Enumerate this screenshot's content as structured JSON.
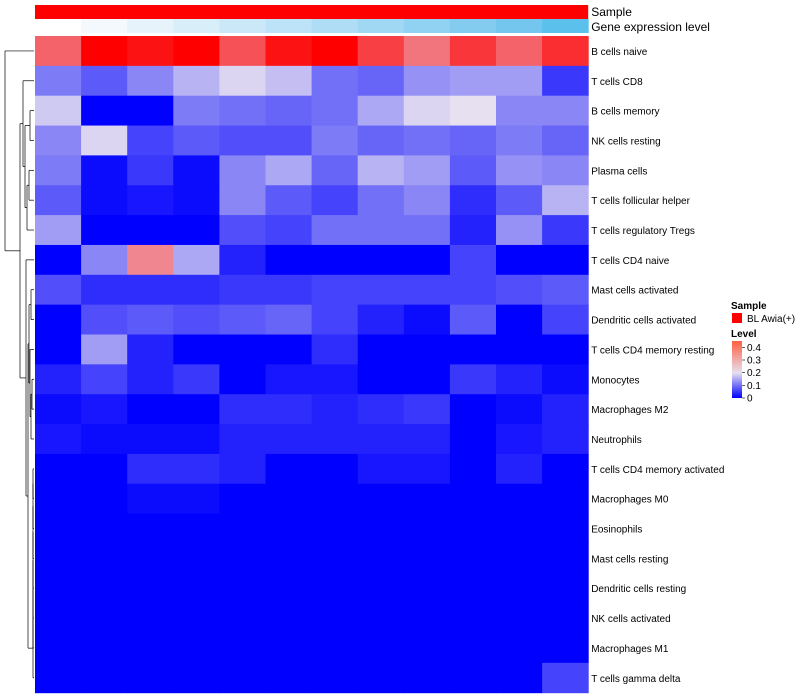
{
  "chart_data": {
    "type": "heatmap",
    "annotation_tracks": [
      {
        "name": "Sample",
        "color": "#ff0000"
      },
      {
        "name": "Gene expression level",
        "colors": [
          "#ffffff",
          "#f4f9fd",
          "#e6f3fb",
          "#d8eef9",
          "#cae8f8",
          "#bce3f7",
          "#aeddf5",
          "#a0d7f3",
          "#91d1f1",
          "#83cbef",
          "#75c6ee",
          "#5bc0ec"
        ]
      }
    ],
    "rows": [
      "B cells naive",
      "T cells CD8",
      "B cells memory",
      "NK cells resting",
      "Plasma cells",
      "T cells follicular helper",
      "T cells regulatory  Tregs",
      "T cells CD4 naive",
      "Mast cells activated",
      "Dendritic cells activated",
      "T cells CD4 memory resting",
      "Monocytes",
      "Macrophages M2",
      "Neutrophils",
      "T cells CD4 memory activated",
      "Macrophages M0",
      "Eosinophils",
      "Mast cells resting",
      "Dendritic cells resting",
      "NK cells activated",
      "Macrophages M1",
      "T cells gamma delta"
    ],
    "values": [
      [
        0.34,
        0.45,
        0.43,
        0.45,
        0.36,
        0.43,
        0.45,
        0.38,
        0.32,
        0.39,
        0.34,
        0.4
      ],
      [
        0.11,
        0.08,
        0.12,
        0.16,
        0.19,
        0.17,
        0.1,
        0.09,
        0.13,
        0.14,
        0.14,
        0.05
      ],
      [
        0.18,
        0.0,
        0.0,
        0.11,
        0.1,
        0.09,
        0.1,
        0.15,
        0.19,
        0.2,
        0.12,
        0.12
      ],
      [
        0.12,
        0.19,
        0.06,
        0.08,
        0.07,
        0.07,
        0.11,
        0.09,
        0.1,
        0.09,
        0.11,
        0.09
      ],
      [
        0.11,
        0.01,
        0.05,
        0.01,
        0.12,
        0.15,
        0.09,
        0.16,
        0.14,
        0.08,
        0.13,
        0.12
      ],
      [
        0.08,
        0.01,
        0.02,
        0.01,
        0.12,
        0.08,
        0.06,
        0.1,
        0.12,
        0.04,
        0.08,
        0.16
      ],
      [
        0.14,
        0.0,
        0.0,
        0.0,
        0.07,
        0.06,
        0.1,
        0.1,
        0.1,
        0.03,
        0.13,
        0.05
      ],
      [
        0.0,
        0.12,
        0.3,
        0.15,
        0.03,
        0.0,
        0.0,
        0.0,
        0.0,
        0.06,
        0.0,
        0.0
      ],
      [
        0.07,
        0.04,
        0.04,
        0.04,
        0.05,
        0.05,
        0.06,
        0.06,
        0.06,
        0.06,
        0.07,
        0.08
      ],
      [
        0.0,
        0.07,
        0.08,
        0.07,
        0.08,
        0.09,
        0.06,
        0.03,
        0.01,
        0.08,
        0.0,
        0.06
      ],
      [
        0.0,
        0.14,
        0.03,
        0.0,
        0.0,
        0.0,
        0.04,
        0.0,
        0.0,
        0.0,
        0.0,
        0.0
      ],
      [
        0.03,
        0.06,
        0.03,
        0.05,
        0.0,
        0.02,
        0.02,
        0.0,
        0.0,
        0.05,
        0.03,
        0.01
      ],
      [
        0.01,
        0.02,
        0.0,
        0.0,
        0.04,
        0.04,
        0.03,
        0.04,
        0.05,
        0.0,
        0.01,
        0.03
      ],
      [
        0.02,
        0.01,
        0.01,
        0.01,
        0.03,
        0.03,
        0.03,
        0.03,
        0.03,
        0.0,
        0.02,
        0.03
      ],
      [
        0.0,
        0.0,
        0.04,
        0.04,
        0.03,
        0.0,
        0.0,
        0.02,
        0.02,
        0.0,
        0.03,
        0.0
      ],
      [
        0.0,
        0.0,
        0.01,
        0.01,
        0.0,
        0.0,
        0.0,
        0.0,
        0.0,
        0.0,
        0.0,
        0.0
      ],
      [
        0.0,
        0.0,
        0.0,
        0.0,
        0.0,
        0.0,
        0.0,
        0.0,
        0.0,
        0.0,
        0.0,
        0.0
      ],
      [
        0.0,
        0.0,
        0.0,
        0.0,
        0.0,
        0.0,
        0.0,
        0.0,
        0.0,
        0.0,
        0.0,
        0.0
      ],
      [
        0.0,
        0.0,
        0.0,
        0.0,
        0.0,
        0.0,
        0.0,
        0.0,
        0.0,
        0.0,
        0.0,
        0.0
      ],
      [
        0.0,
        0.0,
        0.0,
        0.0,
        0.0,
        0.0,
        0.0,
        0.0,
        0.0,
        0.0,
        0.0,
        0.0
      ],
      [
        0.0,
        0.0,
        0.0,
        0.0,
        0.0,
        0.0,
        0.0,
        0.0,
        0.0,
        0.0,
        0.0,
        0.0
      ],
      [
        0.0,
        0.0,
        0.0,
        0.0,
        0.0,
        0.0,
        0.0,
        0.0,
        0.0,
        0.0,
        0.0,
        0.06
      ]
    ],
    "color_scale": {
      "min": 0,
      "mid": 0.2,
      "max": 0.45,
      "low_color": "#0000ff",
      "mid_color": "#e6e0f0",
      "high_color": "#ff0000"
    },
    "legend": {
      "placement": "right",
      "sample_title": "Sample",
      "sample_entry": {
        "label": "BL Awia(+)",
        "color": "#ff0000"
      },
      "level_title": "Level",
      "level_ticks": [
        {
          "value": 0.4,
          "label": "0.4"
        },
        {
          "value": 0.3,
          "label": "0.3"
        },
        {
          "value": 0.2,
          "label": "0.2"
        },
        {
          "value": 0.1,
          "label": "0.1"
        },
        {
          "value": 0,
          "label": "0"
        }
      ]
    },
    "row_dendrogram": true
  }
}
